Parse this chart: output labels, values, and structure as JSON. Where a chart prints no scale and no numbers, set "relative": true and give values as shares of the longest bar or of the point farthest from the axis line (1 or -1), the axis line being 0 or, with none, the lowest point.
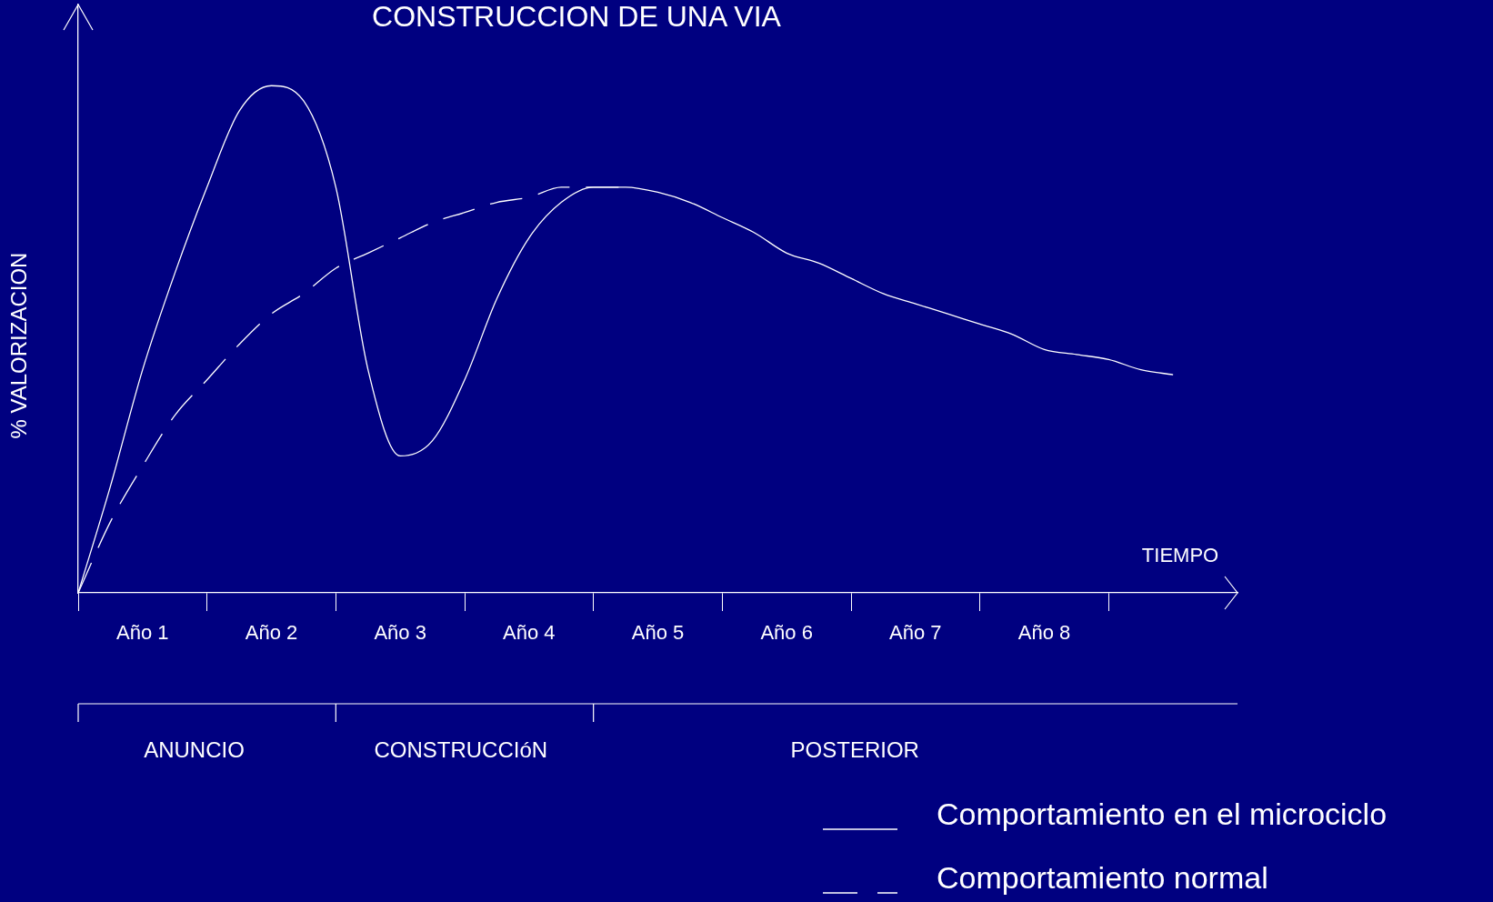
{
  "chart_data": {
    "type": "line",
    "title": "CONSTRUCCION DE UNA VIA",
    "xlabel": "TIEMPO",
    "ylabel": "% VALORIZACION",
    "relative": true,
    "grid": false,
    "legend": "bottom right",
    "marker": "none",
    "categories": [
      null,
      null,
      "Año 1",
      null,
      null,
      null,
      "Año 2",
      null,
      null,
      null,
      "Año 3",
      null,
      null,
      null,
      "Año 4",
      null,
      null,
      null,
      "Año 5",
      null,
      null,
      null,
      "Año 6",
      null,
      null,
      null,
      "Año 7",
      null,
      null,
      null,
      "Año 8",
      null,
      null,
      null,
      null,
      null,
      null
    ],
    "annotations": [
      "ANUNCIO",
      "CONSTRUCCIóN",
      "POSTERIOR"
    ],
    "series": [
      {
        "name": "Comportamiento en el microciclo",
        "color": "#ffffff",
        "line_style": "solid",
        "values": [
          0,
          0.21,
          0.44,
          0.63,
          0.8,
          0.95,
          1,
          0.97,
          0.8,
          0.44,
          0.27,
          0.3,
          0.42,
          0.58,
          0.7,
          0.77,
          0.8,
          0.8,
          0.79,
          0.77,
          0.74,
          0.71,
          0.67,
          0.65,
          0.62,
          0.59,
          0.57,
          0.55,
          0.53,
          0.51,
          0.48,
          0.47,
          0.46,
          0.44,
          0.43,
          null,
          null
        ]
      },
      {
        "name": "Comportamiento normal",
        "color": "#ffffff",
        "line_style": "dashed",
        "values": [
          0,
          0.14,
          0.25,
          0.35,
          0.42,
          0.49,
          0.55,
          0.59,
          0.64,
          0.67,
          0.7,
          0.73,
          0.75,
          0.77,
          0.78,
          0.8,
          0.8,
          0.8,
          null,
          null,
          null,
          null,
          null,
          null,
          null,
          null,
          null,
          null,
          null,
          null,
          null,
          null,
          null,
          null,
          null,
          null,
          null
        ]
      }
    ]
  }
}
